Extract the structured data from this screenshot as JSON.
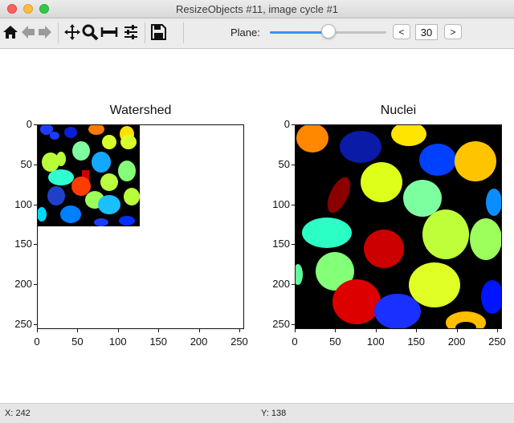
{
  "window": {
    "title": "ResizeObjects #11, image cycle #1"
  },
  "toolbar": {
    "icons": [
      "home-icon",
      "back-arrow-icon",
      "forward-arrow-icon",
      "pan-icon",
      "zoom-icon",
      "subplots-icon",
      "configure-icon",
      "save-icon"
    ],
    "plane_label": "Plane:",
    "plane_value": "30",
    "plane_fraction": 0.5,
    "prev_label": "<",
    "next_label": ">"
  },
  "plots": [
    {
      "title": "Watershed",
      "x_ticks": [
        "0",
        "50",
        "100",
        "150",
        "200",
        "250"
      ],
      "y_ticks": [
        "0",
        "50",
        "100",
        "150",
        "200",
        "250"
      ]
    },
    {
      "title": "Nuclei",
      "x_ticks": [
        "0",
        "50",
        "100",
        "150",
        "200",
        "250"
      ],
      "y_ticks": [
        "0",
        "50",
        "100",
        "150",
        "200",
        "250"
      ]
    }
  ],
  "status": {
    "x": "X: 242",
    "y": "Y: 138"
  },
  "chart_data": [
    {
      "type": "heatmap",
      "title": "Watershed",
      "xlim": [
        0,
        255
      ],
      "ylim": [
        255,
        0
      ],
      "image_extent": [
        0,
        128
      ],
      "background": "#000000"
    },
    {
      "type": "heatmap",
      "title": "Nuclei",
      "xlim": [
        0,
        255
      ],
      "ylim": [
        255,
        0
      ],
      "image_extent": [
        0,
        256
      ],
      "background": "#000000"
    }
  ]
}
